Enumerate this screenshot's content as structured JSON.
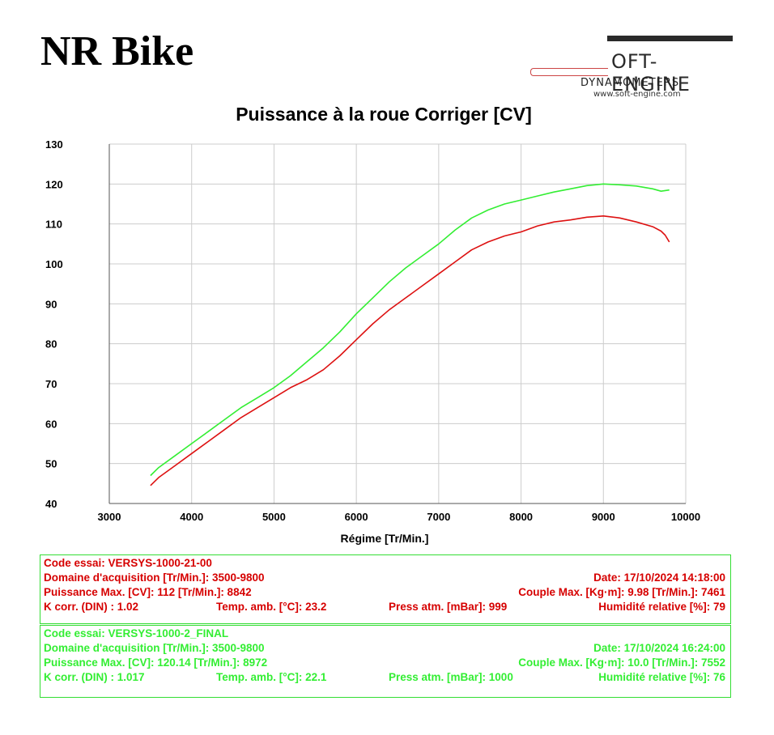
{
  "brand": "NR Bike",
  "logo": {
    "main": "OFT-ENGINE",
    "sub": "DYNAMOMETERS",
    "url": "www.soft-engine.com"
  },
  "colors": {
    "green": "#33ee33",
    "red": "#dd1111",
    "grid": "#cccccc"
  },
  "chart_data": {
    "type": "line",
    "title": "Puissance à la roue Corriger [CV]",
    "xlabel": "Régime [Tr/Min.]",
    "ylabel": "",
    "xlim": [
      3000,
      10000
    ],
    "ylim": [
      40,
      130
    ],
    "xticks": [
      3000,
      4000,
      5000,
      6000,
      7000,
      8000,
      9000,
      10000
    ],
    "yticks": [
      40,
      50,
      60,
      70,
      80,
      90,
      100,
      110,
      120,
      130
    ],
    "grid": true,
    "series": [
      {
        "color": "#33ee33",
        "x": [
          3500,
          3600,
          3800,
          4000,
          4200,
          4400,
          4600,
          4800,
          5000,
          5200,
          5400,
          5600,
          5800,
          6000,
          6200,
          6400,
          6600,
          6800,
          7000,
          7200,
          7400,
          7600,
          7800,
          8000,
          8200,
          8400,
          8600,
          8800,
          9000,
          9200,
          9400,
          9600,
          9700,
          9800
        ],
        "y": [
          47,
          49,
          52,
          55,
          58,
          61,
          64,
          66.5,
          69,
          72,
          75.5,
          79,
          83,
          87.5,
          91.5,
          95.5,
          99,
          102,
          105,
          108.5,
          111.5,
          113.5,
          115,
          116,
          117,
          118,
          118.8,
          119.6,
          120,
          119.8,
          119.5,
          118.8,
          118.2,
          118.5
        ]
      },
      {
        "color": "#dd1111",
        "x": [
          3500,
          3600,
          3800,
          4000,
          4200,
          4400,
          4600,
          4800,
          5000,
          5200,
          5400,
          5600,
          5800,
          6000,
          6200,
          6400,
          6600,
          6800,
          7000,
          7200,
          7400,
          7600,
          7800,
          8000,
          8200,
          8400,
          8600,
          8800,
          9000,
          9200,
          9400,
          9600,
          9700,
          9750,
          9800
        ],
        "y": [
          44.5,
          46.5,
          49.5,
          52.5,
          55.5,
          58.5,
          61.5,
          64,
          66.5,
          69,
          71,
          73.5,
          77,
          81,
          85,
          88.5,
          91.5,
          94.5,
          97.5,
          100.5,
          103.5,
          105.5,
          107,
          108,
          109.5,
          110.5,
          111,
          111.7,
          112,
          111.5,
          110.5,
          109.3,
          108.2,
          107.2,
          105.5
        ]
      }
    ]
  },
  "run1": {
    "code": "Code essai: VERSYS-1000-21-00",
    "domain": "Domaine d'acquisition [Tr/Min.]: 3500-9800",
    "date": "Date: 17/10/2024   14:18:00",
    "power": "Puissance Max. [CV]: 112   [Tr/Min.]: 8842",
    "torque": "Couple Max. [Kg·m]: 9.98   [Tr/Min.]: 7461",
    "kcorr": "K corr. (DIN) : 1.02",
    "temp": "Temp. amb. [°C]: 23.2",
    "press": "Press atm. [mBar]: 999",
    "humid": "Humidité relative [%]: 79"
  },
  "run2": {
    "code": "Code essai: VERSYS-1000-2_FINAL",
    "domain": "Domaine d'acquisition [Tr/Min.]: 3500-9800",
    "date": "Date: 17/10/2024   16:24:00",
    "power": "Puissance Max. [CV]: 120.14   [Tr/Min.]: 8972",
    "torque": "Couple Max. [Kg·m]: 10.0   [Tr/Min.]: 7552",
    "kcorr": "K corr. (DIN) : 1.017",
    "temp": "Temp. amb. [°C]: 22.1",
    "press": "Press atm. [mBar]: 1000",
    "humid": "Humidité relative [%]: 76"
  }
}
